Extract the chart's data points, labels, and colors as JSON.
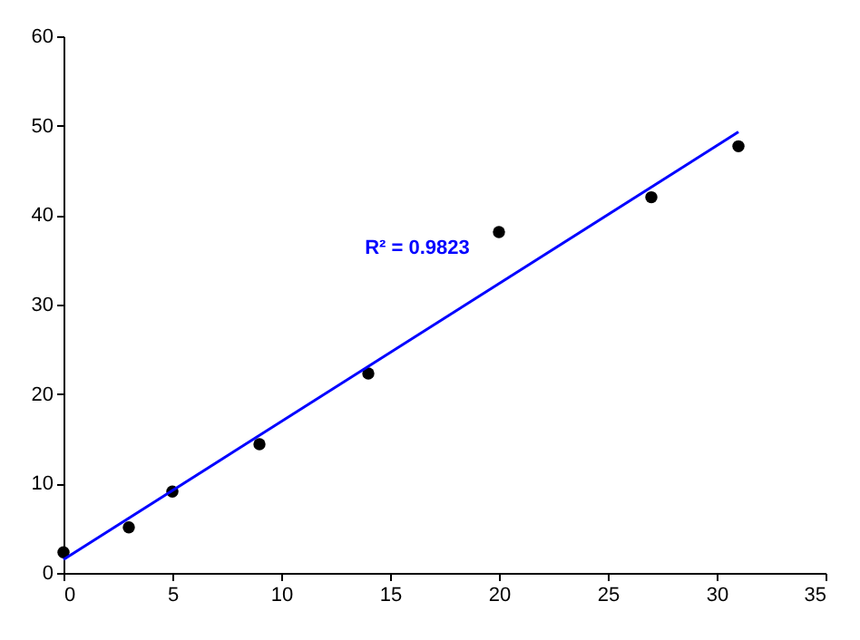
{
  "chart_data": {
    "type": "scatter",
    "x": [
      0,
      3,
      5,
      9,
      14,
      20,
      27,
      31
    ],
    "series": [
      {
        "color": "#000000",
        "marker": "circle",
        "values": [
          2.3,
          5.1,
          9.1,
          14.4,
          22.3,
          38.1,
          42,
          47.7
        ]
      },
      {
        "type": "line",
        "marker": "none",
        "color": "#0000ff",
        "x": [
          0,
          31
        ],
        "values": [
          1.5,
          49.3
        ]
      }
    ],
    "annotations": [
      "R² = 0.9823"
    ],
    "xlim": [
      0,
      35
    ],
    "xticks": [
      0,
      5,
      10,
      15,
      20,
      25,
      30,
      35
    ],
    "ylim": [
      0,
      60
    ],
    "yticks": [
      0,
      10,
      20,
      30,
      40,
      50,
      60
    ],
    "grid": false
  }
}
